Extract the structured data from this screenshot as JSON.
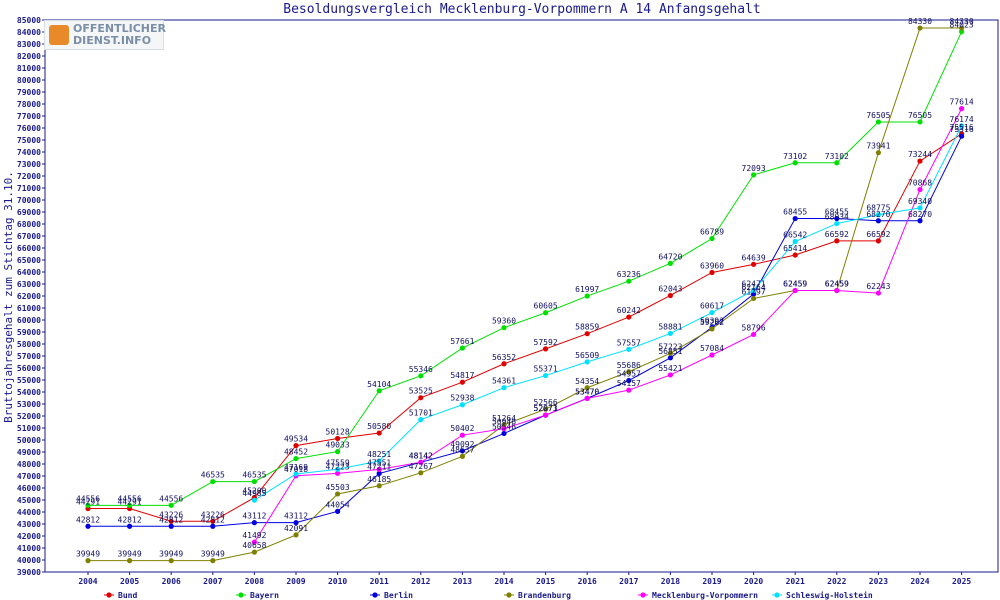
{
  "logo": {
    "line1": "OFFENTLICHER",
    "line2": "DIENST.INFO"
  },
  "chart_data": {
    "type": "line",
    "title": "Besoldungsvergleich Mecklenburg-Vorpommern A 14 Anfangsgehalt",
    "xlabel": "",
    "ylabel": "Bruttojahresgehalt zum Stichtag 31.10.",
    "ylim": [
      39000,
      85000
    ],
    "ytick_step": 1000,
    "grid": false,
    "legend": "bottom",
    "categories": [
      "2004",
      "2005",
      "2006",
      "2007",
      "2008",
      "2009",
      "2010",
      "2011",
      "2012",
      "2013",
      "2014",
      "2015",
      "2016",
      "2017",
      "2018",
      "2019",
      "2020",
      "2021",
      "2022",
      "2023",
      "2024",
      "2025"
    ],
    "series": [
      {
        "name": "Bund",
        "color": "#e00000",
        "values": [
          44291,
          44291,
          43226,
          43226,
          45200,
          49534,
          50128,
          50580,
          53525,
          54817,
          56352,
          57592,
          58859,
          60242,
          62043,
          63960,
          64639,
          65414,
          66592,
          66592,
          73244,
          75516
        ]
      },
      {
        "name": "Bayern",
        "color": "#00e000",
        "values": [
          44556,
          44556,
          44556,
          46535,
          46535,
          48452,
          49033,
          54104,
          55346,
          57661,
          59360,
          60605,
          61997,
          63236,
          64720,
          66789,
          72093,
          73102,
          73102,
          76505,
          76505,
          84023
        ]
      },
      {
        "name": "Berlin",
        "color": "#0000e0",
        "values": [
          42812,
          42812,
          42812,
          42812,
          43112,
          43112,
          44054,
          47211,
          48142,
          49092,
          50546,
          52073,
          53470,
          54957,
          56851,
          59392,
          62164,
          68455,
          68455,
          68270,
          68270,
          75316
        ]
      },
      {
        "name": "Brandenburg",
        "color": "#808000",
        "values": [
          39949,
          39949,
          39949,
          39949,
          40658,
          42091,
          45503,
          46185,
          47267,
          48637,
          51264,
          52566,
          54354,
          55686,
          57223,
          59262,
          61797,
          62459,
          62459,
          73941,
          84330,
          84330
        ]
      },
      {
        "name": "Mecklenburg-Vorpommern",
        "color": "#ff00ff",
        "values": [
          null,
          null,
          null,
          null,
          41492,
          47018,
          47223,
          47551,
          48142,
          50402,
          50946,
          52071,
          53470,
          54157,
          55421,
          57084,
          58796,
          62459,
          62459,
          62243,
          70868,
          77614
        ]
      },
      {
        "name": "Schleswig-Holstein",
        "color": "#00e0ff",
        "values": [
          null,
          null,
          null,
          null,
          44985,
          47169,
          47559,
          48251,
          51701,
          52938,
          54361,
          55371,
          56509,
          57557,
          58881,
          60617,
          62471,
          66542,
          68034,
          68775,
          69340,
          76174
        ]
      }
    ]
  }
}
